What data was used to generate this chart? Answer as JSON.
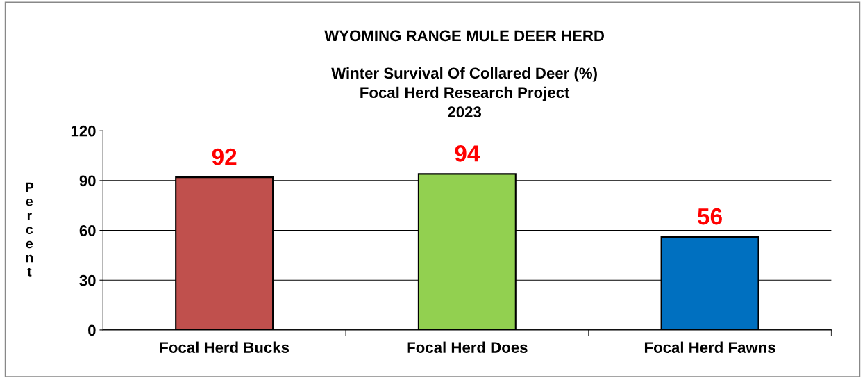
{
  "chart_data": {
    "type": "bar",
    "title": "WYOMING RANGE MULE DEER HERD",
    "subtitle": "Winter Survival Of Collared Deer (%)\nFocal Herd Research Project\n2023",
    "ylabel": "Percent",
    "categories": [
      "Focal Herd Bucks",
      "Focal Herd Does",
      "Focal Herd Fawns"
    ],
    "values": [
      92,
      94,
      56
    ],
    "colors": [
      "#c0504d",
      "#92d050",
      "#0070c0"
    ],
    "ylim": [
      0,
      120
    ],
    "yticks": [
      0,
      30,
      60,
      90,
      120
    ],
    "grid": "y",
    "data_labels": true
  }
}
